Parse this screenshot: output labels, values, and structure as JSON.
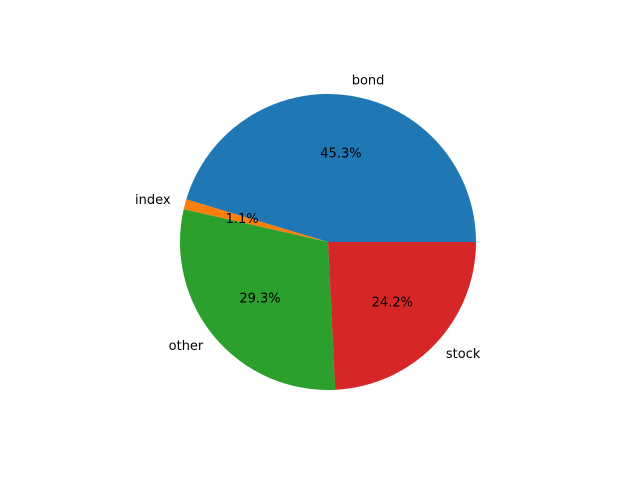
{
  "chart_data": {
    "type": "pie",
    "title": "",
    "labels": [
      "bond",
      "index",
      "other",
      "stock"
    ],
    "values": [
      45.3,
      1.1,
      29.3,
      24.2
    ],
    "value_labels": [
      "45.3%",
      "1.1%",
      "29.3%",
      "24.2%"
    ],
    "colors": [
      "#1f77b4",
      "#ff7f0e",
      "#2ca02c",
      "#d62728"
    ],
    "start_angle_deg": 0,
    "direction": "counterclockwise",
    "legend": "none"
  }
}
